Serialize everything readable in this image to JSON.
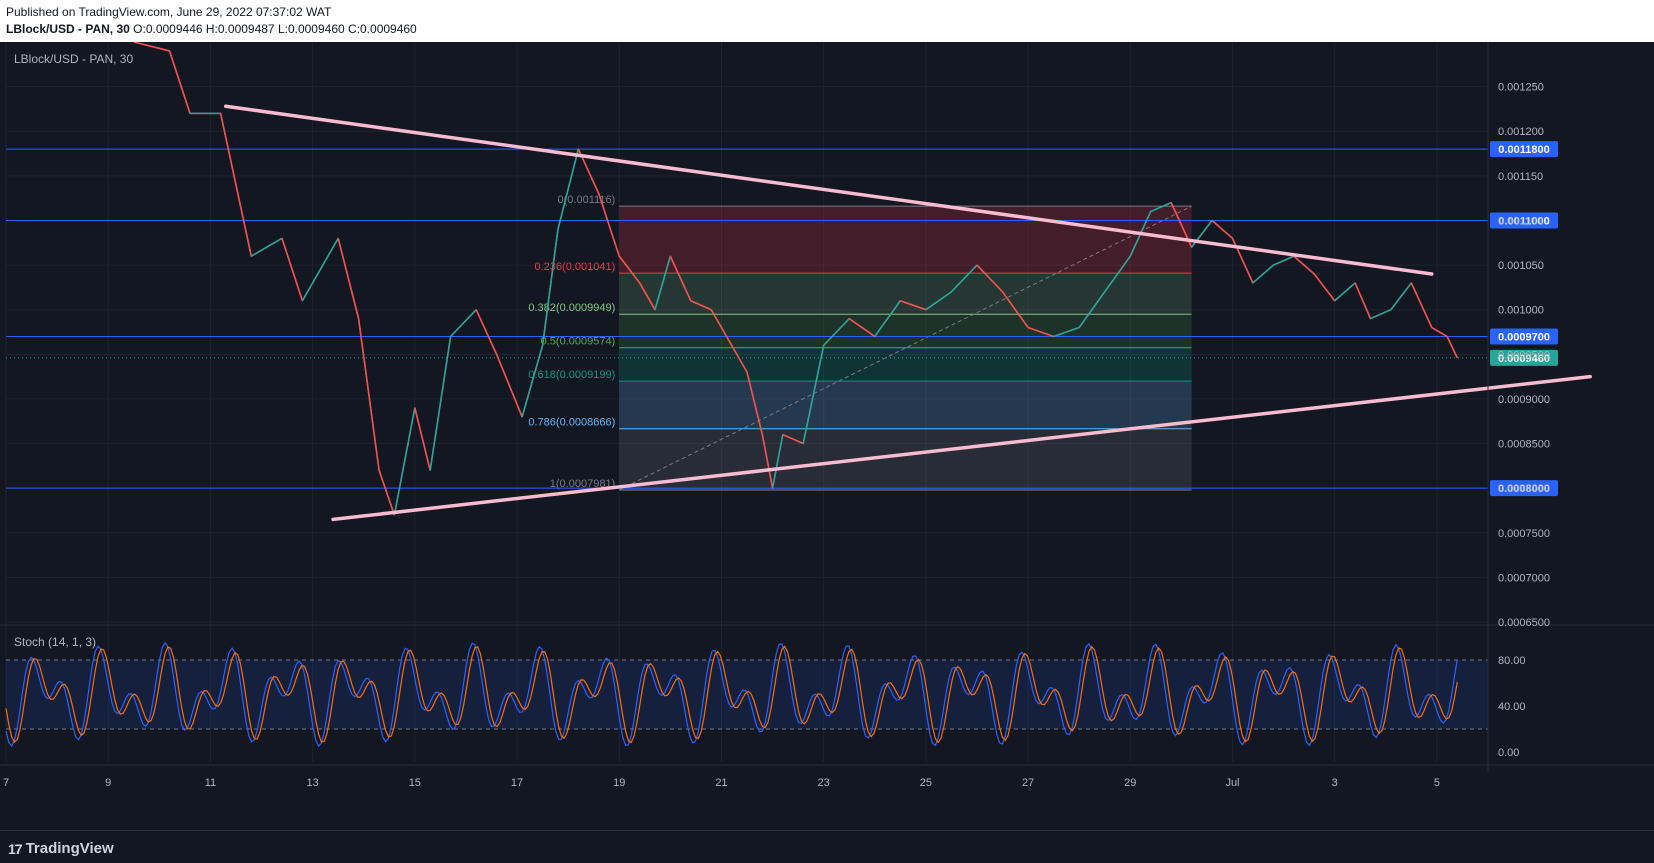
{
  "header": {
    "published": "Published on TradingView.com, June 29, 2022 07:37:02 WAT",
    "symbol": "LBlock/USD - PAN, 30",
    "ohlc": "O:0.0009446 H:0.0009487 L:0.0009460 C:0.0009460"
  },
  "footer": {
    "brand": "TradingView"
  },
  "chart_data": {
    "type": "line",
    "title": "LBlock/USD - PAN, 30",
    "x_axis_ticks": [
      "7",
      "9",
      "11",
      "13",
      "15",
      "17",
      "19",
      "21",
      "23",
      "25",
      "27",
      "29",
      "Jul",
      "3",
      "5"
    ],
    "price_axis_ticks": [
      "0.001250",
      "0.001200",
      "0.001150",
      "0.001100",
      "0.001050",
      "0.001000",
      "0.0009500",
      "0.0009000",
      "0.0008500",
      "0.0008000",
      "0.0007500",
      "0.0007000",
      "0.0006500"
    ],
    "ylim": [
      0.00065,
      0.0013
    ],
    "x_range_days": [
      7,
      36
    ],
    "price_series": [
      {
        "x": 9.5,
        "y": 0.0013
      },
      {
        "x": 10.2,
        "y": 0.00129
      },
      {
        "x": 10.6,
        "y": 0.00122
      },
      {
        "x": 11.2,
        "y": 0.00122
      },
      {
        "x": 11.8,
        "y": 0.00106
      },
      {
        "x": 12.4,
        "y": 0.00108
      },
      {
        "x": 12.8,
        "y": 0.00101
      },
      {
        "x": 13.5,
        "y": 0.00108
      },
      {
        "x": 13.9,
        "y": 0.00099
      },
      {
        "x": 14.3,
        "y": 0.00082
      },
      {
        "x": 14.6,
        "y": 0.00077
      },
      {
        "x": 15.0,
        "y": 0.00089
      },
      {
        "x": 15.3,
        "y": 0.00082
      },
      {
        "x": 15.7,
        "y": 0.00097
      },
      {
        "x": 16.2,
        "y": 0.001
      },
      {
        "x": 16.6,
        "y": 0.00095
      },
      {
        "x": 17.1,
        "y": 0.00088
      },
      {
        "x": 17.5,
        "y": 0.00096
      },
      {
        "x": 17.8,
        "y": 0.00109
      },
      {
        "x": 18.2,
        "y": 0.00118
      },
      {
        "x": 18.6,
        "y": 0.00113
      },
      {
        "x": 19.0,
        "y": 0.00106
      },
      {
        "x": 19.4,
        "y": 0.00103
      },
      {
        "x": 19.7,
        "y": 0.001
      },
      {
        "x": 20.0,
        "y": 0.00106
      },
      {
        "x": 20.4,
        "y": 0.00101
      },
      {
        "x": 20.8,
        "y": 0.001
      },
      {
        "x": 21.2,
        "y": 0.00096
      },
      {
        "x": 21.5,
        "y": 0.00093
      },
      {
        "x": 21.8,
        "y": 0.00086
      },
      {
        "x": 22.0,
        "y": 0.0008
      },
      {
        "x": 22.2,
        "y": 0.00086
      },
      {
        "x": 22.6,
        "y": 0.00085
      },
      {
        "x": 23.0,
        "y": 0.00096
      },
      {
        "x": 23.5,
        "y": 0.00099
      },
      {
        "x": 24.0,
        "y": 0.00097
      },
      {
        "x": 24.5,
        "y": 0.00101
      },
      {
        "x": 25.0,
        "y": 0.001
      },
      {
        "x": 25.5,
        "y": 0.00102
      },
      {
        "x": 26.0,
        "y": 0.00105
      },
      {
        "x": 26.5,
        "y": 0.00102
      },
      {
        "x": 27.0,
        "y": 0.00098
      },
      {
        "x": 27.5,
        "y": 0.00097
      },
      {
        "x": 28.0,
        "y": 0.00098
      },
      {
        "x": 28.5,
        "y": 0.00102
      },
      {
        "x": 29.0,
        "y": 0.00106
      },
      {
        "x": 29.4,
        "y": 0.00111
      },
      {
        "x": 29.8,
        "y": 0.00112
      },
      {
        "x": 30.2,
        "y": 0.00107
      },
      {
        "x": 30.6,
        "y": 0.0011
      },
      {
        "x": 31.0,
        "y": 0.00108
      },
      {
        "x": 31.4,
        "y": 0.00103
      },
      {
        "x": 31.8,
        "y": 0.00105
      },
      {
        "x": 32.2,
        "y": 0.00106
      },
      {
        "x": 32.6,
        "y": 0.00104
      },
      {
        "x": 33.0,
        "y": 0.00101
      },
      {
        "x": 33.4,
        "y": 0.00103
      },
      {
        "x": 33.7,
        "y": 0.00099
      },
      {
        "x": 34.1,
        "y": 0.001
      },
      {
        "x": 34.5,
        "y": 0.00103
      },
      {
        "x": 34.9,
        "y": 0.00098
      },
      {
        "x": 35.2,
        "y": 0.00097
      },
      {
        "x": 35.4,
        "y": 0.000946
      }
    ],
    "horizontal_levels": [
      {
        "price": 0.00118,
        "label": "0.0011800"
      },
      {
        "price": 0.0011,
        "label": "0.0011000"
      },
      {
        "price": 0.00097,
        "label": "0.0009700"
      },
      {
        "price": 0.0008,
        "label": "0.0008000"
      }
    ],
    "current_price": {
      "price": 0.000946,
      "label": "0.0009460",
      "color": "#26a69a"
    },
    "trendlines": [
      {
        "from": [
          11.3,
          0.001228
        ],
        "to": [
          34.9,
          0.00104
        ]
      },
      {
        "from": [
          13.4,
          0.000765
        ],
        "to": [
          38.0,
          0.000925
        ]
      }
    ],
    "fibonacci": {
      "x_start": 19.0,
      "x_end": 30.2,
      "levels": [
        {
          "ratio": "0",
          "price": 0.001116,
          "label": "0(0.001116)",
          "color": "#787b86"
        },
        {
          "ratio": "0.236",
          "price": 0.001041,
          "label": "0.236(0.001041)",
          "color": "#f23645"
        },
        {
          "ratio": "0.382",
          "price": 0.0009949,
          "label": "0.382(0.0009949)",
          "color": "#81c784"
        },
        {
          "ratio": "0.5",
          "price": 0.0009574,
          "label": "0.5(0.0009574)",
          "color": "#4caf50"
        },
        {
          "ratio": "0.618",
          "price": 0.00092,
          "label": "0.618(0.0009199)",
          "color": "#089981"
        },
        {
          "ratio": "0.786",
          "price": 0.0008666,
          "label": "0.786(0.0008666)",
          "color": "#64b5f6"
        },
        {
          "ratio": "1",
          "price": 0.000798,
          "label": "1(0.0007981)",
          "color": "#787b86"
        }
      ]
    },
    "stochastic": {
      "title": "Stoch (14, 1, 3)",
      "ylim": [
        0,
        100
      ],
      "ticks": [
        "80.00",
        "40.00",
        "0.00"
      ],
      "upper_band": 80,
      "lower_band": 20,
      "k_color": "#2962ff",
      "d_color": "#ff6d00"
    }
  }
}
